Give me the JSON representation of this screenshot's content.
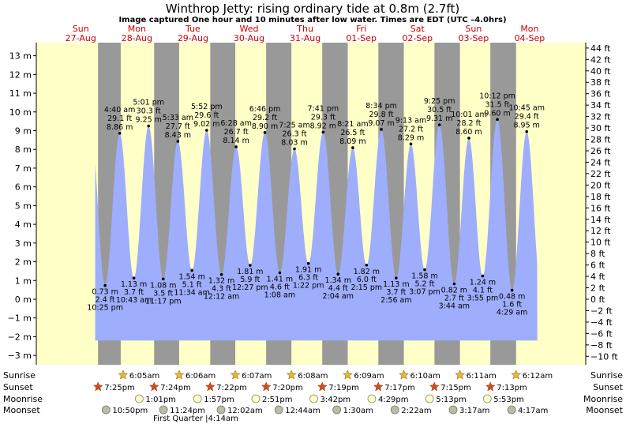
{
  "chart_data": {
    "type": "area",
    "title": "Winthrop Jetty: rising  ordinary tide at 0.8m (2.7ft)",
    "subtitle": "Image captured One hour and 10 minutes after low water. Times are EDT (UTC –4.0hrs)",
    "ylim": [
      -3.5,
      13.7
    ],
    "y_left_ticks": [
      "−3 m",
      "−2 m",
      "−1 m",
      "0 m",
      "1 m",
      "2 m",
      "3 m",
      "4 m",
      "5 m",
      "6 m",
      "7 m",
      "8 m",
      "9 m",
      "10 m",
      "11 m",
      "12 m",
      "13 m"
    ],
    "y_right_ticks": [
      "−10 ft",
      "−8 ft",
      "−6 ft",
      "−4 ft",
      "−2 ft",
      "0 ft",
      "2 ft",
      "4 ft",
      "6 ft",
      "8 ft",
      "10 ft",
      "12 ft",
      "14 ft",
      "16 ft",
      "18 ft",
      "20 ft",
      "22 ft",
      "24 ft",
      "26 ft",
      "28 ft",
      "30 ft",
      "32 ft",
      "34 ft",
      "36 ft",
      "38 ft",
      "40 ft",
      "42 ft",
      "44 ft"
    ],
    "days": [
      {
        "dow": "Sun",
        "date": "27-Aug"
      },
      {
        "dow": "Mon",
        "date": "28-Aug"
      },
      {
        "dow": "Tue",
        "date": "29-Aug"
      },
      {
        "dow": "Wed",
        "date": "30-Aug"
      },
      {
        "dow": "Thu",
        "date": "31-Aug"
      },
      {
        "dow": "Fri",
        "date": "01-Sep"
      },
      {
        "dow": "Sat",
        "date": "02-Sep"
      },
      {
        "dow": "Sun",
        "date": "03-Sep"
      },
      {
        "dow": "Mon",
        "date": "04-Sep"
      }
    ],
    "day_starts_hours": [
      0,
      24,
      48,
      72,
      96,
      120,
      144,
      168,
      192
    ],
    "hours_range": [
      -7,
      228
    ],
    "night_bands_hours": [
      [
        19.4,
        29.1
      ],
      [
        43.4,
        54.1
      ],
      [
        67.4,
        78.1
      ],
      [
        91.3,
        102.1
      ],
      [
        115.3,
        126.2
      ],
      [
        139.3,
        150.2
      ],
      [
        163.3,
        174.2
      ],
      [
        187.2,
        198.2
      ]
    ],
    "extremes": [
      {
        "t": 22.42,
        "m": 0.73,
        "ft": "2.4 ft",
        "time": "10:25 pm",
        "type": "low"
      },
      {
        "t": 28.67,
        "m": 8.86,
        "ft": "29.1 ft",
        "time": "4:40 am",
        "type": "high"
      },
      {
        "t": 34.72,
        "m": 1.13,
        "ft": "3.7 ft",
        "time": "10:43 am",
        "type": "low"
      },
      {
        "t": 41.02,
        "m": 9.25,
        "ft": "30.3 ft",
        "time": "5:01 pm",
        "type": "high"
      },
      {
        "t": 47.28,
        "m": 1.08,
        "ft": "3.5 ft",
        "time": "11:17 pm",
        "type": "low"
      },
      {
        "t": 53.55,
        "m": 8.43,
        "ft": "27.7 ft",
        "time": "5:33 am",
        "type": "high"
      },
      {
        "t": 59.57,
        "m": 1.54,
        "ft": "5.1 ft",
        "time": "11:34 am",
        "type": "low"
      },
      {
        "t": 65.87,
        "m": 9.02,
        "ft": "29.6 ft",
        "time": "5:52 pm",
        "type": "high"
      },
      {
        "t": 72.2,
        "m": 1.32,
        "ft": "4.3 ft",
        "time": "12:12 am",
        "type": "low"
      },
      {
        "t": 78.47,
        "m": 8.14,
        "ft": "26.7 ft",
        "time": "6:28 am",
        "type": "high"
      },
      {
        "t": 84.45,
        "m": 1.81,
        "ft": "5.9 ft",
        "time": "12:27 pm",
        "type": "low"
      },
      {
        "t": 90.77,
        "m": 8.9,
        "ft": "29.2 ft",
        "time": "6:46 pm",
        "type": "high"
      },
      {
        "t": 97.13,
        "m": 1.41,
        "ft": "4.6 ft",
        "time": "1:08 am",
        "type": "low"
      },
      {
        "t": 103.42,
        "m": 8.03,
        "ft": "26.3 ft",
        "time": "7:25 am",
        "type": "high"
      },
      {
        "t": 109.37,
        "m": 1.91,
        "ft": "6.3 ft",
        "time": "1:22 pm",
        "type": "low"
      },
      {
        "t": 115.68,
        "m": 8.92,
        "ft": "29.3 ft",
        "time": "7:41 pm",
        "type": "high"
      },
      {
        "t": 122.07,
        "m": 1.34,
        "ft": "4.4 ft",
        "time": "2:04 am",
        "type": "low"
      },
      {
        "t": 128.35,
        "m": 8.09,
        "ft": "26.5 ft",
        "time": "8:21 am",
        "type": "high"
      },
      {
        "t": 134.25,
        "m": 1.82,
        "ft": "6.0 ft",
        "time": "2:15 pm",
        "type": "low"
      },
      {
        "t": 140.57,
        "m": 9.07,
        "ft": "29.8 ft",
        "time": "8:34 pm",
        "type": "high"
      },
      {
        "t": 146.93,
        "m": 1.13,
        "ft": "3.7 ft",
        "time": "2:56 am",
        "type": "low"
      },
      {
        "t": 153.22,
        "m": 8.29,
        "ft": "27.2 ft",
        "time": "9:13 am",
        "type": "high"
      },
      {
        "t": 159.12,
        "m": 1.58,
        "ft": "5.2 ft",
        "time": "3:07 pm",
        "type": "low"
      },
      {
        "t": 165.42,
        "m": 9.31,
        "ft": "30.5 ft",
        "time": "9:25 pm",
        "type": "high"
      },
      {
        "t": 171.73,
        "m": 0.82,
        "ft": "2.7 ft",
        "time": "3:44 am",
        "type": "low"
      },
      {
        "t": 178.02,
        "m": 8.6,
        "ft": "28.2 ft",
        "time": "10:01 am",
        "type": "high"
      },
      {
        "t": 183.92,
        "m": 1.24,
        "ft": "4.1 ft",
        "time": "3:55 pm",
        "type": "low"
      },
      {
        "t": 190.2,
        "m": 9.6,
        "ft": "31.5 ft",
        "time": "10:12 pm",
        "type": "high"
      },
      {
        "t": 196.48,
        "m": 0.48,
        "ft": "1.6 ft",
        "time": "4:29 am",
        "type": "low"
      },
      {
        "t": 202.75,
        "m": 8.95,
        "ft": "29.4 ft",
        "time": "10:45 am",
        "type": "high"
      }
    ],
    "astro": {
      "row_labels": {
        "sunrise": "Sunrise",
        "sunset": "Sunset",
        "moonrise": "Moonrise",
        "moonset": "Moonset"
      },
      "sunrise": [
        {
          "t": 30.1,
          "label": "6:05am"
        },
        {
          "t": 54.1,
          "label": "6:06am"
        },
        {
          "t": 78.12,
          "label": "6:07am"
        },
        {
          "t": 102.13,
          "label": "6:08am"
        },
        {
          "t": 126.15,
          "label": "6:09am"
        },
        {
          "t": 150.17,
          "label": "6:10am"
        },
        {
          "t": 174.18,
          "label": "6:11am"
        },
        {
          "t": 198.2,
          "label": "6:12am"
        }
      ],
      "sunset": [
        {
          "t": 19.42,
          "label": "7:25pm"
        },
        {
          "t": 43.4,
          "label": "7:24pm"
        },
        {
          "t": 67.37,
          "label": "7:22pm"
        },
        {
          "t": 91.33,
          "label": "7:20pm"
        },
        {
          "t": 115.32,
          "label": "7:19pm"
        },
        {
          "t": 139.28,
          "label": "7:17pm"
        },
        {
          "t": 163.25,
          "label": "7:15pm"
        },
        {
          "t": 187.22,
          "label": "7:13pm"
        }
      ],
      "moonrise": [
        {
          "t": 37.02,
          "label": "1:01pm"
        },
        {
          "t": 61.95,
          "label": "1:57pm"
        },
        {
          "t": 86.85,
          "label": "2:51pm"
        },
        {
          "t": 111.7,
          "label": "3:42pm"
        },
        {
          "t": 136.48,
          "label": "4:29pm"
        },
        {
          "t": 161.22,
          "label": "5:13pm"
        },
        {
          "t": 185.88,
          "label": "5:53pm"
        }
      ],
      "moonset": [
        {
          "t": 22.83,
          "label": "10:50pm"
        },
        {
          "t": 47.4,
          "label": "11:24pm"
        },
        {
          "t": 72.03,
          "label": "12:02am"
        },
        {
          "t": 96.73,
          "label": "12:44am"
        },
        {
          "t": 121.5,
          "label": "1:30am"
        },
        {
          "t": 146.37,
          "label": "2:22am"
        },
        {
          "t": 171.28,
          "label": "3:17am"
        },
        {
          "t": 196.28,
          "label": "4:17am"
        }
      ],
      "phase_note": "First Quarter |4:14am"
    }
  },
  "colors": {
    "day_bg": "#ffffc8",
    "night_bg": "#999999",
    "tide_fill": "#9eaefc",
    "day_text": "#cc0000",
    "sun_star": "#e8b830",
    "sunset_star": "#dd4422",
    "moonrise": "#ffffcc",
    "moonset": "#bbbbaa"
  }
}
